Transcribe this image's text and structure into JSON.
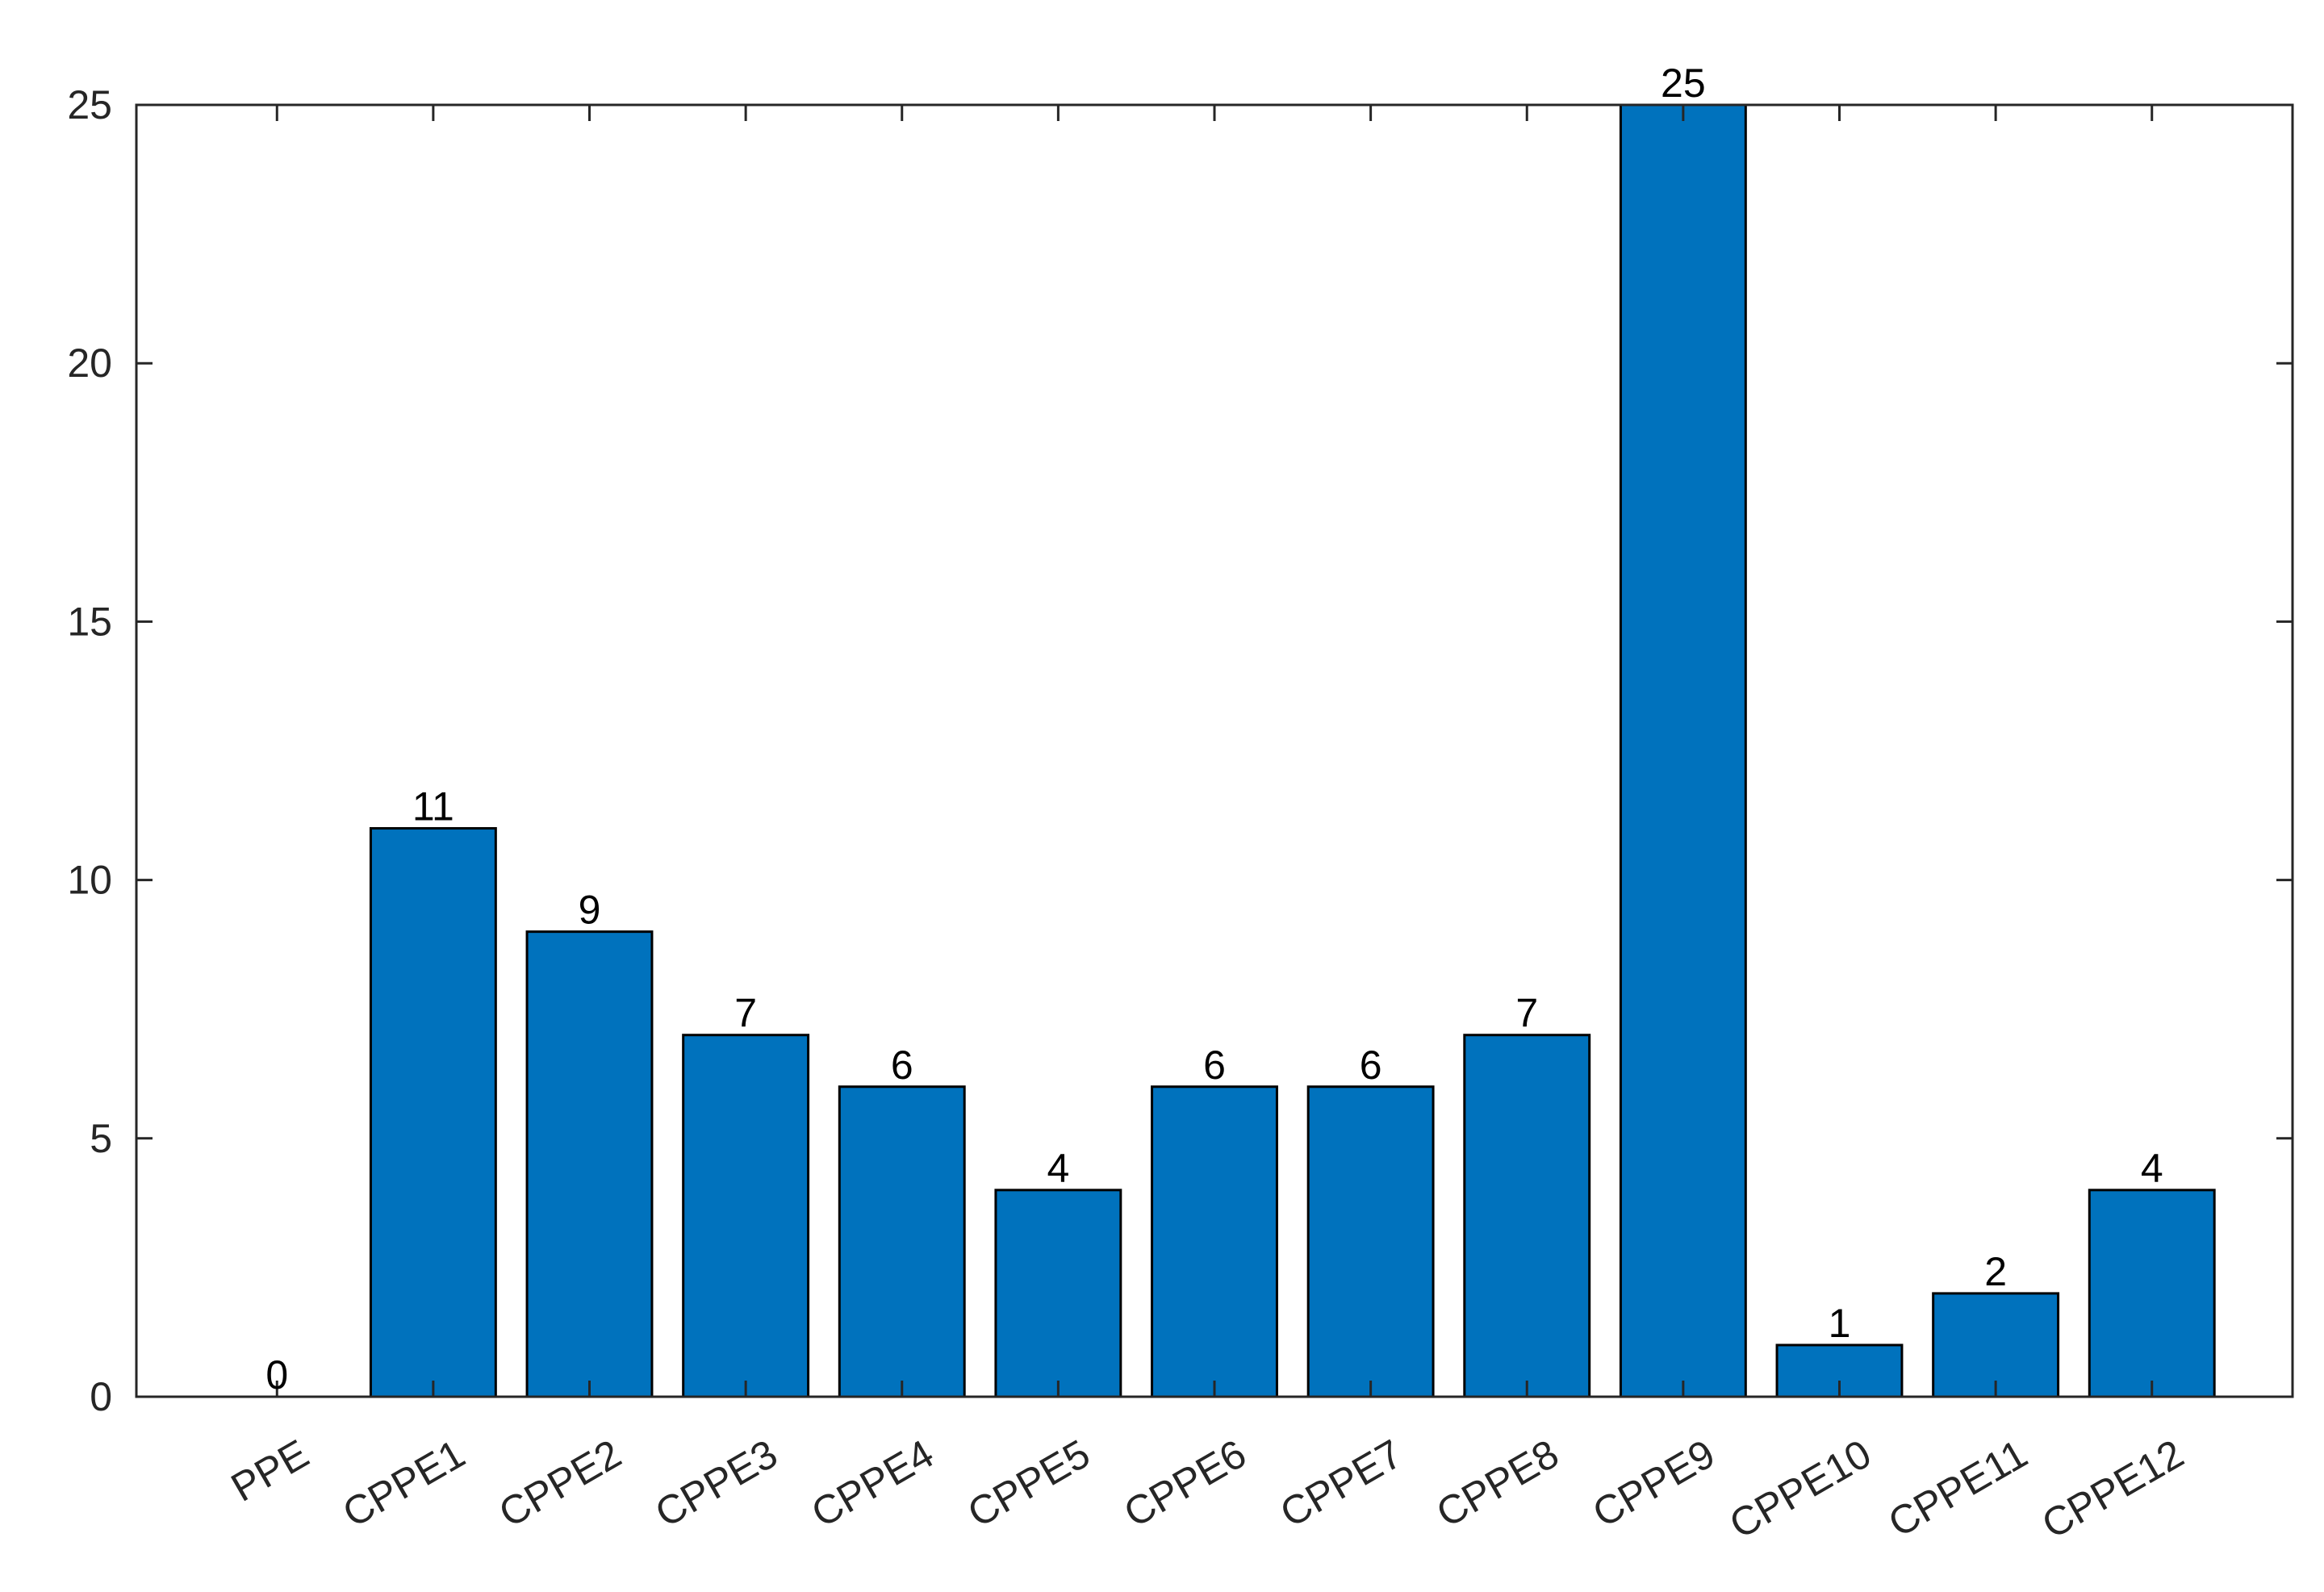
{
  "chart_data": {
    "type": "bar",
    "title": "",
    "xlabel": "",
    "ylabel": "",
    "categories": [
      "PPE",
      "CPPE1",
      "CPPE2",
      "CPPE3",
      "CPPE4",
      "CPPE5",
      "CPPE6",
      "CPPE7",
      "CPPE8",
      "CPPE9",
      "CPPE10",
      "CPPE11",
      "CPPE12"
    ],
    "values": [
      0,
      11,
      9,
      7,
      6,
      4,
      6,
      6,
      7,
      25,
      1,
      2,
      4
    ],
    "data_labels": [
      "0",
      "11",
      "9",
      "7",
      "6",
      "4",
      "6",
      "6",
      "7",
      "25",
      "1",
      "2",
      "4"
    ],
    "ylim": [
      0,
      25
    ],
    "yticks": [
      0,
      5,
      10,
      15,
      20,
      25
    ],
    "ytick_labels": [
      "0",
      "5",
      "10",
      "15",
      "20",
      "25"
    ],
    "grid": false,
    "legend": "none",
    "bar_color": "#0072BD",
    "bar_edge_color": "#000000",
    "axis_color": "#262626"
  }
}
